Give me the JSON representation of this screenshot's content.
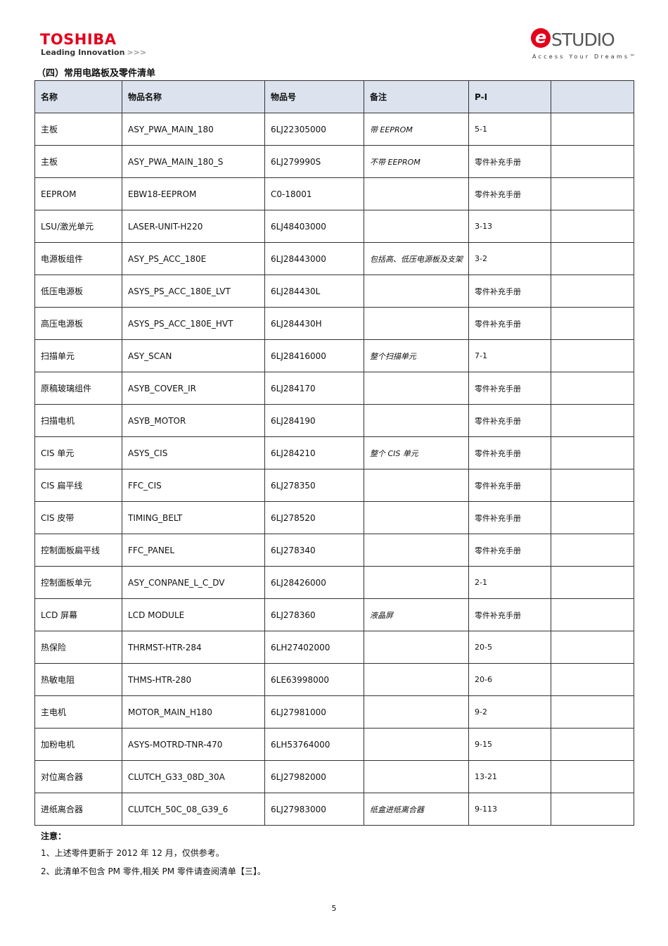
{
  "header": {
    "logo": "TOSHIBA",
    "tagline": "Leading Innovation",
    "brand_prefix": "e",
    "brand": "STUDIO",
    "brand_tagline": "Access Your Dreams™"
  },
  "section_title": "（四）常用电路板及零件清单",
  "table": {
    "header": [
      "名称",
      "物品名称",
      "物品号",
      "备注",
      "P-I"
    ],
    "rows": [
      [
        "主板",
        "ASY_PWA_MAIN_180",
        "6LJ22305000",
        "带 EEPROM",
        "5-1"
      ],
      [
        "主板",
        "ASY_PWA_MAIN_180_S",
        "6LJ279990S",
        "不带 EEPROM",
        "零件补充手册"
      ],
      [
        "EEPROM",
        "EBW18-EEPROM",
        "C0-18001",
        null,
        "零件补充手册"
      ],
      [
        "LSU/激光单元",
        "LASER-UNIT-H220",
        "6LJ48403000",
        null,
        "3-13"
      ],
      [
        "电源板组件",
        "ASY_PS_ACC_180E",
        "6LJ28443000",
        "包括高、低压电源板及支架",
        "3-2"
      ],
      [
        "低压电源板",
        "ASYS_PS_ACC_180E_LVT",
        "6LJ284430L",
        null,
        "零件补充手册"
      ],
      [
        "高压电源板",
        "ASYS_PS_ACC_180E_HVT",
        "6LJ284430H",
        null,
        "零件补充手册"
      ],
      [
        "扫描单元",
        "ASY_SCAN",
        "6LJ28416000",
        "整个扫描单元",
        "7-1"
      ],
      [
        "原稿玻璃组件",
        "ASYB_COVER_IR",
        "6LJ284170",
        null,
        "零件补充手册"
      ],
      [
        "扫描电机",
        "ASYB_MOTOR",
        "6LJ284190",
        null,
        "零件补充手册"
      ],
      [
        "CIS 单元",
        "ASYS_CIS",
        "6LJ284210",
        "整个 CIS 单元",
        "零件补充手册"
      ],
      [
        "CIS 扁平线",
        "FFC_CIS",
        "6LJ278350",
        null,
        "零件补充手册"
      ],
      [
        "CIS 皮带",
        "TIMING_BELT",
        "6LJ278520",
        null,
        "零件补充手册"
      ],
      [
        "控制面板扁平线",
        "FFC_PANEL",
        "6LJ278340",
        null,
        "零件补充手册"
      ],
      [
        "控制面板单元",
        "ASY_CONPANE_L_C_DV",
        "6LJ28426000",
        null,
        "2-1"
      ],
      [
        "LCD 屏幕",
        "LCD MODULE",
        "6LJ278360",
        "液晶屏",
        "零件补充手册"
      ],
      [
        "热保险",
        "THRMST-HTR-284",
        "6LH27402000",
        null,
        "20-5"
      ],
      [
        "热敏电阻",
        "THMS-HTR-280",
        "6LE63998000",
        null,
        "20-6"
      ],
      [
        "主电机",
        "MOTOR_MAIN_H180",
        "6LJ27981000",
        null,
        "9-2"
      ],
      [
        "加粉电机",
        "ASYS-MOTRD-TNR-470",
        "6LH53764000",
        null,
        "9-15"
      ],
      [
        "对位离合器",
        "CLUTCH_G33_08D_30A",
        "6LJ27982000",
        null,
        "13-21"
      ],
      [
        "进纸离合器",
        "CLUTCH_50C_08_G39_6",
        "6LJ27983000",
        "纸盒进纸离合器",
        "9-113"
      ]
    ]
  },
  "notes": {
    "title": "注意：",
    "items": [
      "1、上述零件更新于 2012 年 12 月，仅供参考。",
      "2、此清单不包含 PM 零件,相关 PM 零件请查阅清单【三】。"
    ]
  },
  "page_number": "5"
}
